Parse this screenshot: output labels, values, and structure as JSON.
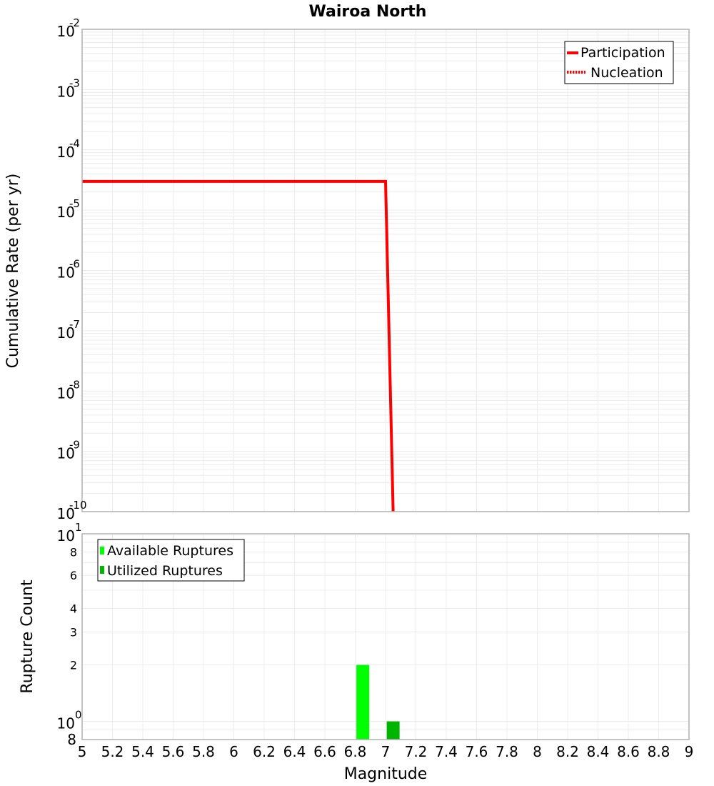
{
  "title": "Wairoa North",
  "upper": {
    "ylabel": "Cumulative Rate (per yr)",
    "yticks": [
      {
        "base": "10",
        "exp": "-2"
      },
      {
        "base": "10",
        "exp": "-3"
      },
      {
        "base": "10",
        "exp": "-4"
      },
      {
        "base": "10",
        "exp": "-5"
      },
      {
        "base": "10",
        "exp": "-6"
      },
      {
        "base": "10",
        "exp": "-7"
      },
      {
        "base": "10",
        "exp": "-8"
      },
      {
        "base": "10",
        "exp": "-9"
      },
      {
        "base": "10",
        "exp": "-10"
      }
    ],
    "legend": [
      {
        "label": "Participation",
        "style": "solid",
        "color": "#ff0000"
      },
      {
        "label": "Nucleation",
        "style": "dotted",
        "color": "#ff0000"
      }
    ]
  },
  "lower": {
    "ylabel": "Rupture Count",
    "yticks_major": [
      {
        "base": "10",
        "exp": "1"
      },
      {
        "base": "10",
        "exp": "0"
      }
    ],
    "yticks_minor": [
      "8",
      "6",
      "4",
      "3",
      "2"
    ],
    "ytick_bottom": "8",
    "legend": [
      {
        "label": "Available Ruptures",
        "color": "#00ff00"
      },
      {
        "label": "Utilized Ruptures",
        "color": "#00b400"
      }
    ]
  },
  "xlabel": "Magnitude",
  "xticks": [
    "5",
    "5.2",
    "5.4",
    "5.6",
    "5.8",
    "6",
    "6.2",
    "6.4",
    "6.6",
    "6.8",
    "7",
    "7.2",
    "7.4",
    "7.6",
    "7.8",
    "8",
    "8.2",
    "8.4",
    "8.6",
    "8.8",
    "9"
  ],
  "chart_data": [
    {
      "type": "line",
      "title": "Wairoa North",
      "xlabel": "Magnitude",
      "ylabel": "Cumulative Rate (per yr)",
      "xlim": [
        5,
        9
      ],
      "ylim": [
        1e-10,
        0.01
      ],
      "yscale": "log",
      "grid": true,
      "legend_position": "upper right",
      "series": [
        {
          "name": "Participation",
          "style": "solid",
          "color": "#ff0000",
          "x": [
            5.0,
            7.0,
            7.05
          ],
          "y": [
            3e-05,
            3e-05,
            1e-10
          ]
        },
        {
          "name": "Nucleation",
          "style": "dotted",
          "color": "#ff0000",
          "x": [
            5.0,
            7.0,
            7.05
          ],
          "y": [
            3e-05,
            3e-05,
            1e-10
          ]
        }
      ]
    },
    {
      "type": "bar",
      "xlabel": "Magnitude",
      "ylabel": "Rupture Count",
      "xlim": [
        5,
        9
      ],
      "ylim": [
        0.8,
        10
      ],
      "yscale": "log",
      "grid": true,
      "legend_position": "upper left",
      "series": [
        {
          "name": "Available Ruptures",
          "color": "#00ff00",
          "x": [
            6.85
          ],
          "values": [
            2
          ]
        },
        {
          "name": "Utilized Ruptures",
          "color": "#00b400",
          "x": [
            7.05
          ],
          "values": [
            1
          ]
        }
      ]
    }
  ]
}
